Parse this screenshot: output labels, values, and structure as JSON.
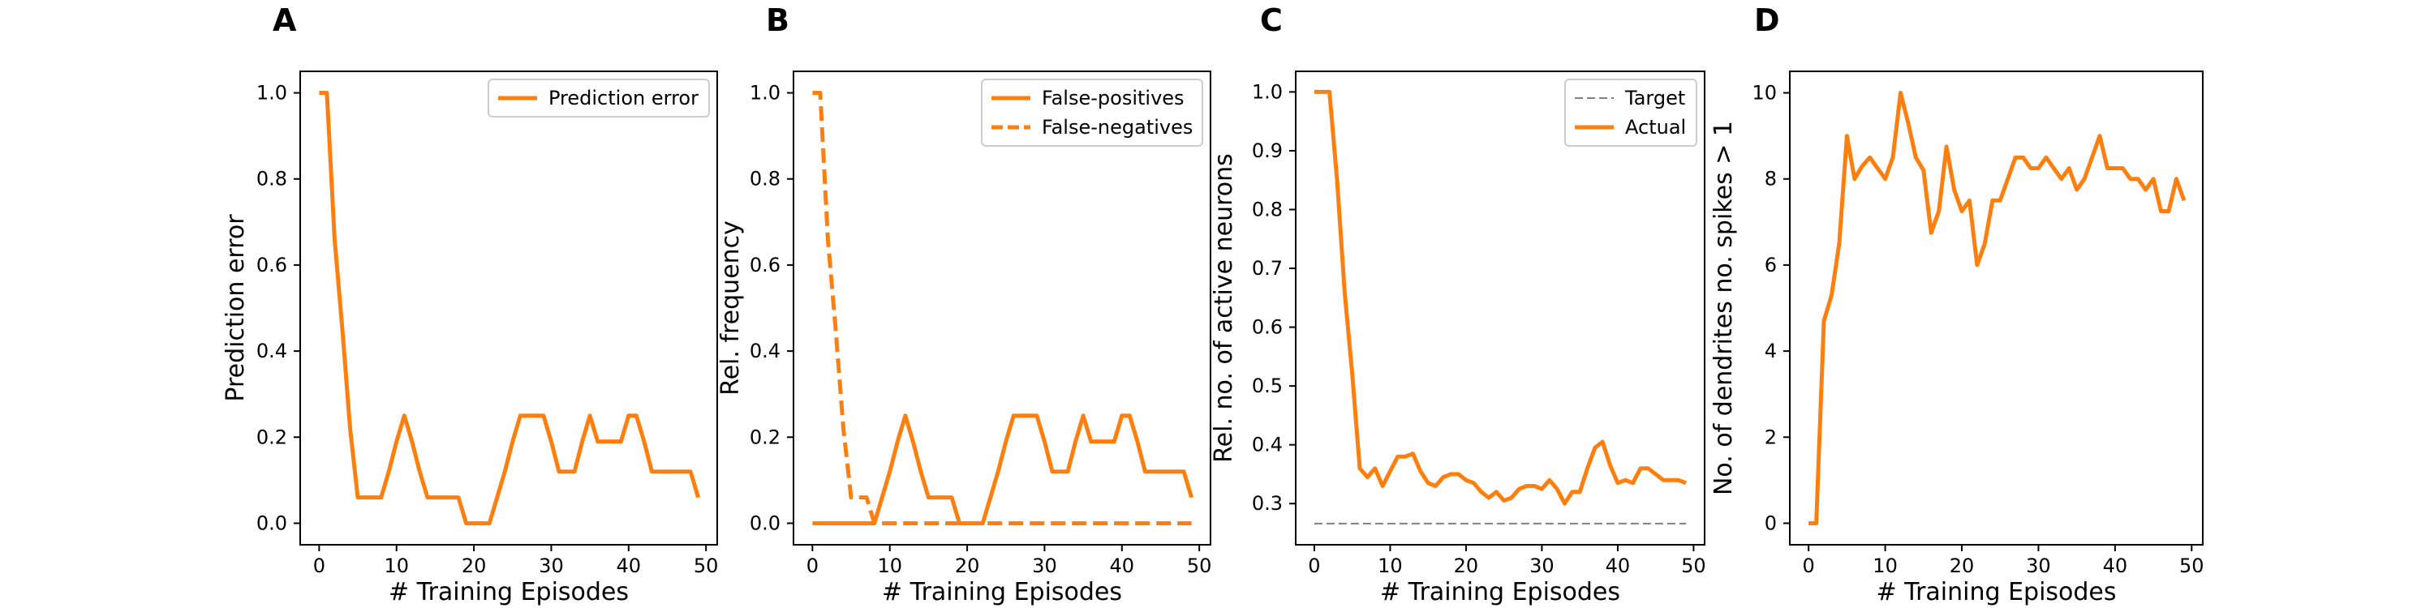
{
  "chart_data": [
    {
      "panel": "A",
      "type": "line",
      "xlabel": "# Training Episodes",
      "ylabel": "Prediction error",
      "xlim": [
        -2.45,
        51.45
      ],
      "ylim": [
        -0.05,
        1.05
      ],
      "xticks": [
        0,
        10,
        20,
        30,
        40,
        50
      ],
      "yticks": [
        0.0,
        0.2,
        0.4,
        0.6,
        0.8,
        1.0
      ],
      "ytick_format": "1",
      "legend": {
        "position": "top-right"
      },
      "x": [
        0,
        1,
        2,
        3,
        4,
        5,
        6,
        7,
        8,
        9,
        10,
        11,
        12,
        13,
        14,
        15,
        16,
        17,
        18,
        19,
        20,
        21,
        22,
        23,
        24,
        25,
        26,
        27,
        28,
        29,
        30,
        31,
        32,
        33,
        34,
        35,
        36,
        37,
        38,
        39,
        40,
        41,
        42,
        43,
        44,
        45,
        46,
        47,
        48,
        49
      ],
      "series": [
        {
          "name": "Prediction error",
          "color": "#ff7f0e",
          "dash": "solid",
          "values": [
            1.0,
            1.0,
            0.66,
            0.45,
            0.22,
            0.06,
            0.06,
            0.06,
            0.06,
            0.12,
            0.19,
            0.25,
            0.19,
            0.12,
            0.06,
            0.06,
            0.06,
            0.06,
            0.06,
            0.0,
            0.0,
            0.0,
            0.0,
            0.06,
            0.12,
            0.19,
            0.25,
            0.25,
            0.25,
            0.25,
            0.19,
            0.12,
            0.12,
            0.12,
            0.19,
            0.25,
            0.19,
            0.19,
            0.19,
            0.19,
            0.25,
            0.25,
            0.19,
            0.12,
            0.12,
            0.12,
            0.12,
            0.12,
            0.12,
            0.06
          ]
        }
      ]
    },
    {
      "panel": "B",
      "type": "line",
      "xlabel": "# Training Episodes",
      "ylabel": "Rel. frequency",
      "xlim": [
        -2.45,
        51.45
      ],
      "ylim": [
        -0.05,
        1.05
      ],
      "xticks": [
        0,
        10,
        20,
        30,
        40,
        50
      ],
      "yticks": [
        0.0,
        0.2,
        0.4,
        0.6,
        0.8,
        1.0
      ],
      "ytick_format": "1",
      "legend": {
        "position": "top-right"
      },
      "x": [
        0,
        1,
        2,
        3,
        4,
        5,
        6,
        7,
        8,
        9,
        10,
        11,
        12,
        13,
        14,
        15,
        16,
        17,
        18,
        19,
        20,
        21,
        22,
        23,
        24,
        25,
        26,
        27,
        28,
        29,
        30,
        31,
        32,
        33,
        34,
        35,
        36,
        37,
        38,
        39,
        40,
        41,
        42,
        43,
        44,
        45,
        46,
        47,
        48,
        49
      ],
      "series": [
        {
          "name": "False-positives",
          "color": "#ff7f0e",
          "dash": "solid",
          "values": [
            0.0,
            0.0,
            0.0,
            0.0,
            0.0,
            0.0,
            0.0,
            0.0,
            0.0,
            0.06,
            0.12,
            0.19,
            0.25,
            0.19,
            0.12,
            0.06,
            0.06,
            0.06,
            0.06,
            0.0,
            0.0,
            0.0,
            0.0,
            0.06,
            0.12,
            0.19,
            0.25,
            0.25,
            0.25,
            0.25,
            0.19,
            0.12,
            0.12,
            0.12,
            0.19,
            0.25,
            0.19,
            0.19,
            0.19,
            0.19,
            0.25,
            0.25,
            0.19,
            0.12,
            0.12,
            0.12,
            0.12,
            0.12,
            0.12,
            0.06
          ]
        },
        {
          "name": "False-negatives",
          "color": "#ff7f0e",
          "dash": "dashed",
          "values": [
            1.0,
            1.0,
            0.66,
            0.45,
            0.22,
            0.06,
            0.06,
            0.06,
            0.0,
            0.0,
            0.0,
            0.0,
            0.0,
            0.0,
            0.0,
            0.0,
            0.0,
            0.0,
            0.0,
            0.0,
            0.0,
            0.0,
            0.0,
            0.0,
            0.0,
            0.0,
            0.0,
            0.0,
            0.0,
            0.0,
            0.0,
            0.0,
            0.0,
            0.0,
            0.0,
            0.0,
            0.0,
            0.0,
            0.0,
            0.0,
            0.0,
            0.0,
            0.0,
            0.0,
            0.0,
            0.0,
            0.0,
            0.0,
            0.0,
            0.0
          ]
        }
      ]
    },
    {
      "panel": "C",
      "type": "line",
      "xlabel": "# Training Episodes",
      "ylabel": "Rel. no. of active neurons",
      "xlim": [
        -2.45,
        51.45
      ],
      "ylim": [
        0.23,
        1.035
      ],
      "xticks": [
        0,
        10,
        20,
        30,
        40,
        50
      ],
      "yticks": [
        0.3,
        0.4,
        0.5,
        0.6,
        0.7,
        0.8,
        0.9,
        1.0
      ],
      "ytick_format": "1",
      "legend": {
        "position": "top-right"
      },
      "x": [
        0,
        1,
        2,
        3,
        4,
        5,
        6,
        7,
        8,
        9,
        10,
        11,
        12,
        13,
        14,
        15,
        16,
        17,
        18,
        19,
        20,
        21,
        22,
        23,
        24,
        25,
        26,
        27,
        28,
        29,
        30,
        31,
        32,
        33,
        34,
        35,
        36,
        37,
        38,
        39,
        40,
        41,
        42,
        43,
        44,
        45,
        46,
        47,
        48,
        49
      ],
      "series": [
        {
          "name": "Target",
          "color": "#808080",
          "dash": "dashed",
          "width": 2,
          "values": [
            0.266,
            0.266,
            0.266,
            0.266,
            0.266,
            0.266,
            0.266,
            0.266,
            0.266,
            0.266,
            0.266,
            0.266,
            0.266,
            0.266,
            0.266,
            0.266,
            0.266,
            0.266,
            0.266,
            0.266,
            0.266,
            0.266,
            0.266,
            0.266,
            0.266,
            0.266,
            0.266,
            0.266,
            0.266,
            0.266,
            0.266,
            0.266,
            0.266,
            0.266,
            0.266,
            0.266,
            0.266,
            0.266,
            0.266,
            0.266,
            0.266,
            0.266,
            0.266,
            0.266,
            0.266,
            0.266,
            0.266,
            0.266,
            0.266,
            0.266
          ]
        },
        {
          "name": "Actual",
          "color": "#ff7f0e",
          "dash": "solid",
          "values": [
            1.0,
            1.0,
            1.0,
            0.85,
            0.66,
            0.52,
            0.36,
            0.345,
            0.36,
            0.33,
            0.355,
            0.38,
            0.38,
            0.385,
            0.355,
            0.335,
            0.33,
            0.345,
            0.35,
            0.35,
            0.34,
            0.335,
            0.32,
            0.31,
            0.32,
            0.305,
            0.31,
            0.325,
            0.33,
            0.33,
            0.325,
            0.34,
            0.325,
            0.3,
            0.32,
            0.32,
            0.36,
            0.395,
            0.405,
            0.365,
            0.335,
            0.34,
            0.335,
            0.36,
            0.36,
            0.35,
            0.34,
            0.34,
            0.34,
            0.335
          ]
        }
      ]
    },
    {
      "panel": "D",
      "type": "line",
      "xlabel": "# Training Episodes",
      "ylabel": "No. of dendrites no. spikes > 1",
      "xlim": [
        -2.45,
        51.45
      ],
      "ylim": [
        -0.5,
        10.5
      ],
      "xticks": [
        0,
        10,
        20,
        30,
        40,
        50
      ],
      "yticks": [
        0,
        2,
        4,
        6,
        8,
        10
      ],
      "ytick_format": "0",
      "x": [
        0,
        1,
        2,
        3,
        4,
        5,
        6,
        7,
        8,
        9,
        10,
        11,
        12,
        13,
        14,
        15,
        16,
        17,
        18,
        19,
        20,
        21,
        22,
        23,
        24,
        25,
        26,
        27,
        28,
        29,
        30,
        31,
        32,
        33,
        34,
        35,
        36,
        37,
        38,
        39,
        40,
        41,
        42,
        43,
        44,
        45,
        46,
        47,
        48,
        49
      ],
      "series": [
        {
          "color": "#ff7f0e",
          "dash": "solid",
          "values": [
            0.0,
            0.0,
            4.7,
            5.3,
            6.5,
            9.0,
            8.0,
            8.3,
            8.5,
            8.25,
            8.0,
            8.5,
            10.0,
            9.3,
            8.5,
            8.2,
            6.75,
            7.25,
            8.75,
            7.75,
            7.25,
            7.5,
            6.0,
            6.5,
            7.5,
            7.5,
            8.0,
            8.5,
            8.5,
            8.25,
            8.25,
            8.5,
            8.25,
            8.0,
            8.25,
            7.75,
            8.0,
            8.5,
            9.0,
            8.25,
            8.25,
            8.25,
            8.0,
            8.0,
            7.75,
            8.0,
            7.25,
            7.25,
            8.0,
            7.5
          ]
        }
      ]
    }
  ]
}
